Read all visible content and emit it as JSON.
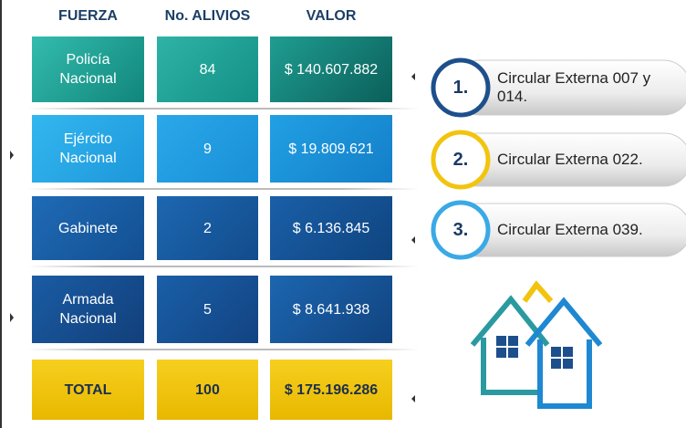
{
  "table": {
    "header": [
      "FUERZA",
      "No. ALIVIOS",
      "VALOR"
    ],
    "rows": [
      [
        "Policía Nacional",
        "84",
        "$ 140.607.882"
      ],
      [
        "Ejército Nacional",
        "9",
        "$ 19.809.621"
      ],
      [
        "Gabinete",
        "2",
        "$ 6.136.845"
      ],
      [
        "Armada Nacional",
        "5",
        "$ 8.641.938"
      ]
    ],
    "total": [
      "TOTAL",
      "100",
      "$ 175.196.286"
    ]
  },
  "circulars": [
    {
      "number": "1.",
      "label": "Circular Externa 007 y 014."
    },
    {
      "number": "2.",
      "label": "Circular Externa 022."
    },
    {
      "number": "3.",
      "label": "Circular Externa 039."
    }
  ]
}
